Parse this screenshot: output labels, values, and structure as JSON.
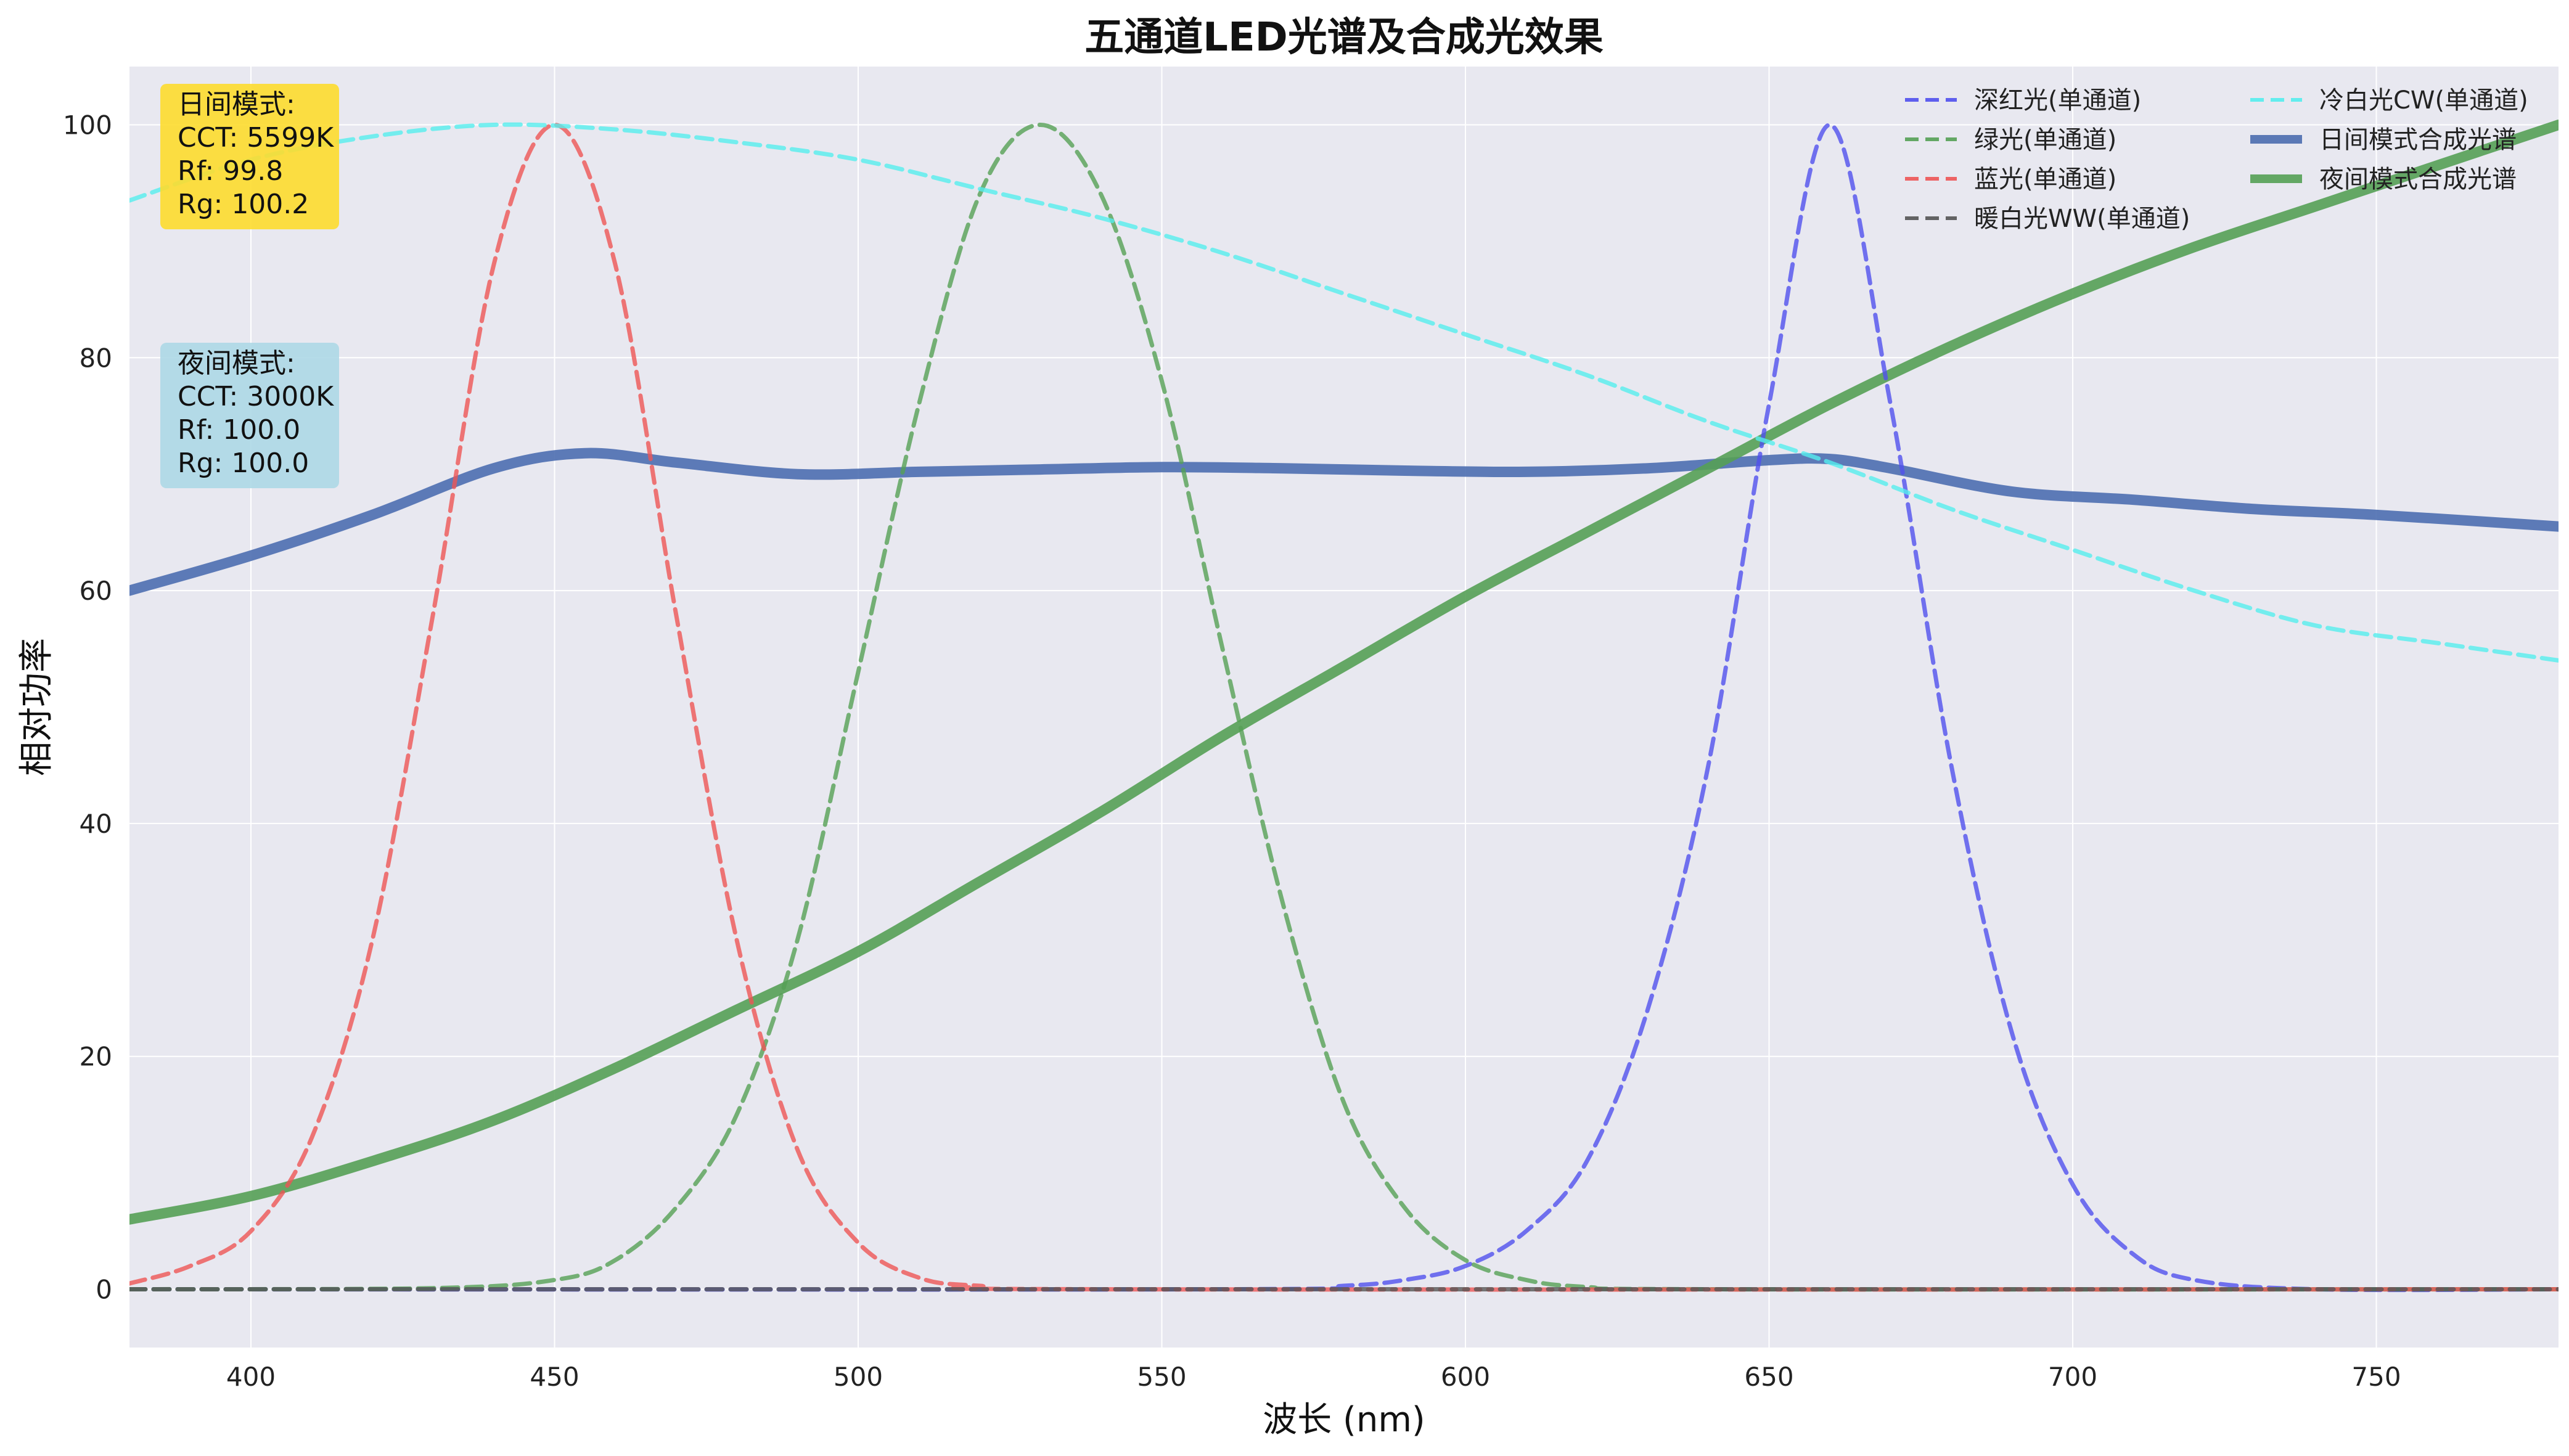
{
  "chart_data": {
    "type": "line",
    "title": "五通道LED光谱及合成光效果",
    "xlabel": "波长 (nm)",
    "ylabel": "相对功率",
    "xlim": [
      380,
      780
    ],
    "ylim": [
      -5,
      105
    ],
    "xticks": [
      400,
      450,
      500,
      550,
      600,
      650,
      700,
      750
    ],
    "yticks": [
      0,
      20,
      40,
      60,
      80,
      100
    ],
    "grid": true,
    "background": "#e8e8f0",
    "legend_position": "top-right",
    "series": [
      {
        "name": "深红光(单通道)",
        "color": "#5050ee",
        "style": "dashed",
        "x": [
          380,
          560,
          580,
          590,
          600,
          610,
          620,
          630,
          640,
          650,
          660,
          670,
          680,
          690,
          700,
          710,
          720,
          740,
          780
        ],
        "y": [
          0,
          0,
          0.3,
          0.8,
          2,
          5,
          11,
          24,
          45,
          76,
          100,
          76,
          45,
          22,
          9,
          3,
          0.8,
          0,
          0
        ]
      },
      {
        "name": "绿光(单通道)",
        "color": "#55a055",
        "style": "dashed",
        "x": [
          380,
          430,
          450,
          460,
          470,
          480,
          490,
          500,
          510,
          520,
          530,
          540,
          550,
          560,
          570,
          580,
          590,
          600,
          610,
          620,
          640,
          780
        ],
        "y": [
          0,
          0.1,
          0.8,
          2.5,
          7,
          15,
          30,
          53,
          76,
          94,
          100,
          94,
          78,
          55,
          33,
          16,
          7,
          2.5,
          0.8,
          0.2,
          0,
          0
        ]
      },
      {
        "name": "蓝光(单通道)",
        "color": "#ee5555",
        "style": "dashed",
        "x": [
          380,
          390,
          400,
          410,
          420,
          430,
          440,
          450,
          460,
          470,
          480,
          490,
          500,
          510,
          520,
          540,
          780
        ],
        "y": [
          0.5,
          2,
          5,
          13,
          30,
          58,
          88,
          100,
          88,
          58,
          30,
          12,
          4,
          1,
          0.3,
          0,
          0
        ]
      },
      {
        "name": "暖白光WW(单通道)",
        "color": "#555555",
        "style": "dashed",
        "x": [
          380,
          780
        ],
        "y": [
          0,
          0
        ]
      },
      {
        "name": "冷白光CW(单通道)",
        "color": "#55eeee",
        "style": "dashed",
        "x": [
          380,
          400,
          420,
          440,
          460,
          480,
          500,
          520,
          540,
          560,
          580,
          600,
          620,
          640,
          660,
          680,
          700,
          720,
          740,
          760,
          780
        ],
        "y": [
          93.5,
          97,
          99,
          100,
          99.6,
          98.5,
          97,
          94.5,
          92,
          89,
          85.5,
          82,
          78.5,
          74.5,
          71,
          67,
          63.5,
          60,
          57,
          55.5,
          54
        ]
      },
      {
        "name": "日间模式合成光谱",
        "color": "#4c6eb0",
        "style": "solid",
        "width": "thick",
        "x": [
          380,
          400,
          420,
          440,
          455,
          470,
          490,
          510,
          530,
          550,
          570,
          590,
          610,
          630,
          650,
          660,
          670,
          690,
          710,
          730,
          750,
          780
        ],
        "y": [
          60,
          63,
          66.5,
          70.5,
          71.8,
          71,
          70,
          70.2,
          70.4,
          70.6,
          70.5,
          70.3,
          70.2,
          70.5,
          71.2,
          71.3,
          70.5,
          68.5,
          67.8,
          67,
          66.5,
          65.5
        ]
      },
      {
        "name": "夜间模式合成光谱",
        "color": "#55a055",
        "style": "solid",
        "width": "thick",
        "x": [
          380,
          400,
          420,
          440,
          460,
          480,
          500,
          520,
          540,
          560,
          580,
          600,
          620,
          640,
          660,
          680,
          700,
          720,
          740,
          760,
          780
        ],
        "y": [
          6,
          8,
          11,
          14.5,
          19,
          24,
          29,
          35,
          41,
          47.5,
          53.5,
          59.5,
          65,
          70.5,
          76,
          81,
          85.5,
          89.5,
          93,
          96.5,
          100
        ]
      }
    ],
    "annotations": [
      {
        "lines": [
          "日间模式:",
          "CCT: 5599K",
          "Rf: 99.8",
          "Rg: 100.2"
        ],
        "background": "#fddb2e",
        "position": "top-left"
      },
      {
        "lines": [
          "夜间模式:",
          "CCT: 3000K",
          "Rf: 100.0",
          "Rg: 100.0"
        ],
        "background": "#add8e6",
        "position": "upper-left"
      }
    ]
  }
}
